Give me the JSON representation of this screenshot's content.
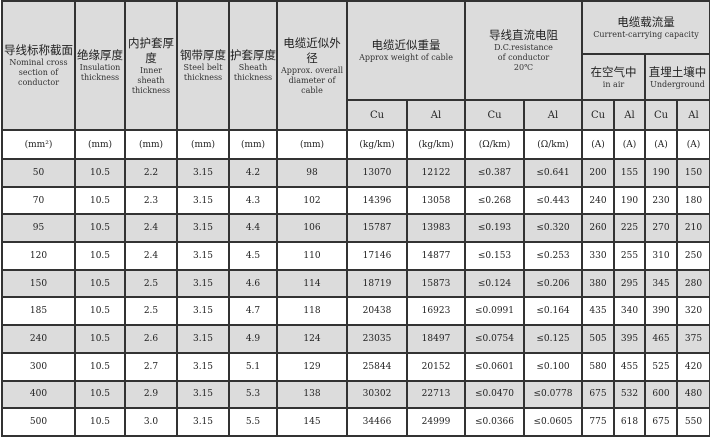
{
  "header": {
    "section": {
      "zh": "导线标称截面",
      "en": "Nominal cross section of conductor",
      "unit": "(mm²)"
    },
    "insulation": {
      "zh": "绝缘厚度",
      "en": "Insulation thickness",
      "unit": "(mm)"
    },
    "inner_sheath": {
      "zh": "内护套厚度",
      "en": "Inner sheath thickness",
      "unit": "(mm)"
    },
    "steel_belt": {
      "zh": "钢带厚度",
      "en": "Steel belt thickness",
      "unit": "(mm)"
    },
    "sheath": {
      "zh": "护套厚度",
      "en": "Sheath thickness",
      "unit": "(mm)"
    },
    "diameter": {
      "zh": "电缆近似外径",
      "en": "Approx. overall diameter of cable",
      "unit": "(mm)"
    },
    "weight": {
      "zh": "电缆近似重量",
      "en": "Approx weight of cable",
      "cu": "Cu",
      "al": "Al",
      "unit_cu": "(kg/km)",
      "unit_al": "(kg/km)"
    },
    "resistance": {
      "zh": "导线直流电阻",
      "en1": "D.C.resistance",
      "en2": "of conductor",
      "en3": "20℃",
      "cu": "Cu",
      "al": "Al",
      "unit_cu": "(Ω/km)",
      "unit_al": "(Ω/km)"
    },
    "capacity": {
      "zh": "电缆载流量",
      "en": "Current-carrying capacity",
      "air": {
        "zh": "在空气中",
        "en": "in air",
        "cu": "Cu",
        "al": "Al",
        "unit_cu": "(A)",
        "unit_al": "(A)"
      },
      "ground": {
        "zh": "直埋土壤中",
        "en": "Underground",
        "cu": "Cu",
        "al": "Al",
        "unit_cu": "(A)",
        "unit_al": "(A)"
      }
    }
  },
  "rows": [
    [
      "50",
      "10.5",
      "2.2",
      "3.15",
      "4.2",
      "98",
      "13070",
      "12122",
      "≤0.387",
      "≤0.641",
      "200",
      "155",
      "190",
      "150"
    ],
    [
      "70",
      "10.5",
      "2.3",
      "3.15",
      "4.3",
      "102",
      "14396",
      "13058",
      "≤0.268",
      "≤0.443",
      "240",
      "190",
      "230",
      "180"
    ],
    [
      "95",
      "10.5",
      "2.4",
      "3.15",
      "4.4",
      "106",
      "15787",
      "13983",
      "≤0.193",
      "≤0.320",
      "260",
      "225",
      "270",
      "210"
    ],
    [
      "120",
      "10.5",
      "2.4",
      "3.15",
      "4.5",
      "110",
      "17146",
      "14877",
      "≤0.153",
      "≤0.253",
      "330",
      "255",
      "310",
      "250"
    ],
    [
      "150",
      "10.5",
      "2.5",
      "3.15",
      "4.6",
      "114",
      "18719",
      "15873",
      "≤0.124",
      "≤0.206",
      "380",
      "295",
      "345",
      "280"
    ],
    [
      "185",
      "10.5",
      "2.5",
      "3.15",
      "4.7",
      "118",
      "20438",
      "16923",
      "≤0.0991",
      "≤0.164",
      "435",
      "340",
      "390",
      "320"
    ],
    [
      "240",
      "10.5",
      "2.6",
      "3.15",
      "4.9",
      "124",
      "23035",
      "18497",
      "≤0.0754",
      "≤0.125",
      "505",
      "395",
      "465",
      "375"
    ],
    [
      "300",
      "10.5",
      "2.7",
      "3.15",
      "5.1",
      "129",
      "25844",
      "20152",
      "≤0.0601",
      "≤0.100",
      "580",
      "455",
      "525",
      "420"
    ],
    [
      "400",
      "10.5",
      "2.9",
      "3.15",
      "5.3",
      "138",
      "30302",
      "22713",
      "≤0.0470",
      "≤0.0778",
      "675",
      "532",
      "600",
      "480"
    ],
    [
      "500",
      "10.5",
      "3.0",
      "3.15",
      "5.5",
      "145",
      "34466",
      "24999",
      "≤0.0366",
      "≤0.0605",
      "775",
      "618",
      "675",
      "550"
    ]
  ]
}
